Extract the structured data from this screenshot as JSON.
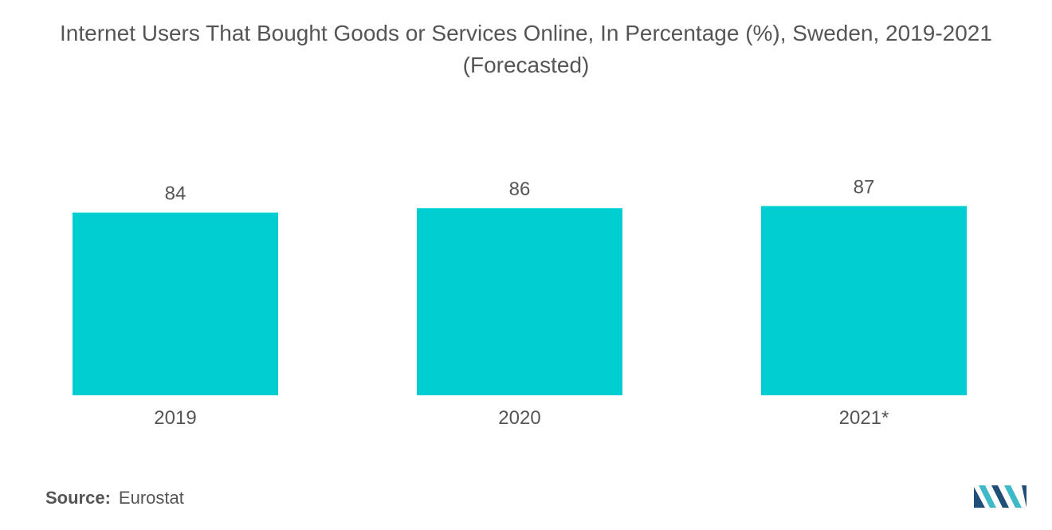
{
  "chart_data": {
    "type": "bar",
    "title": "Internet Users That Bought Goods or Services Online, In Percentage (%), Sweden, 2019-2021",
    "subtitle": "(Forecasted)",
    "categories": [
      "2019",
      "2020",
      "2021*"
    ],
    "values": [
      84,
      86,
      87
    ],
    "xlabel": "",
    "ylabel": "",
    "grid": false,
    "colors": {
      "bar": "#00CED1",
      "text": "#555555"
    }
  },
  "source": {
    "label": "Source:",
    "value": "Eurostat"
  },
  "logo": {
    "icon": "mordor-intelligence-logo-icon",
    "colors": [
      "#1F4E79",
      "#3FB8C8"
    ]
  }
}
